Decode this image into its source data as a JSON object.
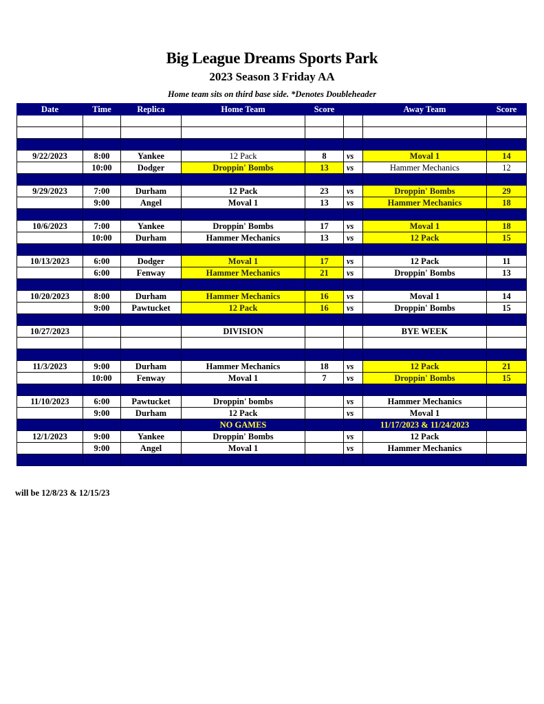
{
  "title": "Big League Dreams Sports Park",
  "subtitle": "2023 Season 3 Friday AA",
  "note": "Home team sits on third base side.  *Denotes Doubleheader",
  "colors": {
    "header": "#01017f",
    "winner_highlight": "#ffff00",
    "no_games_text": "#ffff33"
  },
  "headers": [
    "Date",
    "Time",
    "Replica",
    "Home Team",
    "Score",
    "",
    "Away Team",
    "Score"
  ],
  "rows": [
    {
      "type": "blank"
    },
    {
      "type": "blank"
    },
    {
      "type": "sep"
    },
    {
      "type": "game",
      "date": "9/22/2023",
      "time": "8:00",
      "replica": "Yankee",
      "home": "12 Pack",
      "home_score": "8",
      "vs": "vs",
      "away": "Moval 1",
      "away_score": "14",
      "winner": "away",
      "plain_home": true
    },
    {
      "type": "game",
      "date": "",
      "time": "10:00",
      "replica": "Dodger",
      "home": "Droppin' Bombs",
      "home_score": "13",
      "vs": "vs",
      "away": "Hammer Mechanics",
      "away_score": "12",
      "winner": "home",
      "plain_away": true
    },
    {
      "type": "sep"
    },
    {
      "type": "game",
      "date": "9/29/2023",
      "time": "7:00",
      "replica": "Durham",
      "home": "12 Pack",
      "home_score": "23",
      "vs": "vs",
      "away": "Droppin' Bombs",
      "away_score": "29",
      "winner": "away"
    },
    {
      "type": "game",
      "date": "",
      "time": "9:00",
      "replica": "Angel",
      "home": "Moval 1",
      "home_score": "13",
      "vs": "vs",
      "away": "Hammer Mechanics",
      "away_score": "18",
      "winner": "away"
    },
    {
      "type": "sep"
    },
    {
      "type": "game",
      "date": "10/6/2023",
      "time": "7:00",
      "replica": "Yankee",
      "home": "Droppin' Bombs",
      "home_score": "17",
      "vs": "vs",
      "away": "Moval 1",
      "away_score": "18",
      "winner": "away"
    },
    {
      "type": "game",
      "date": "",
      "time": "10:00",
      "replica": "Durham",
      "home": "Hammer Mechanics",
      "home_score": "13",
      "vs": "vs",
      "away": "12 Pack",
      "away_score": "15",
      "winner": "away"
    },
    {
      "type": "sep"
    },
    {
      "type": "game",
      "date": "10/13/2023",
      "time": "6:00",
      "replica": "Dodger",
      "home": "Moval 1",
      "home_score": "17",
      "vs": "vs",
      "away": "12 Pack",
      "away_score": "11",
      "winner": "home"
    },
    {
      "type": "game",
      "date": "",
      "time": "6:00",
      "replica": "Fenway",
      "home": "Hammer Mechanics",
      "home_score": "21",
      "vs": "vs",
      "away": "Droppin' Bombs",
      "away_score": "13",
      "winner": "home"
    },
    {
      "type": "sep"
    },
    {
      "type": "game",
      "date": "10/20/2023",
      "time": "8:00",
      "replica": "Durham",
      "home": "Hammer Mechanics",
      "home_score": "16",
      "vs": "vs",
      "away": "Moval 1",
      "away_score": "14",
      "winner": "home"
    },
    {
      "type": "game",
      "date": "",
      "time": "9:00",
      "replica": "Pawtucket",
      "home": "12 Pack",
      "home_score": "16",
      "vs": "vs",
      "away": "Droppin' Bombs",
      "away_score": "15",
      "winner": "home"
    },
    {
      "type": "sep"
    },
    {
      "type": "game",
      "date": "10/27/2023",
      "time": "",
      "replica": "",
      "home": "DIVISION",
      "home_score": "",
      "vs": "",
      "away": "BYE WEEK",
      "away_score": ""
    },
    {
      "type": "blank"
    },
    {
      "type": "sep"
    },
    {
      "type": "game",
      "date": "11/3/2023",
      "time": "9:00",
      "replica": "Durham",
      "home": "Hammer Mechanics",
      "home_score": "18",
      "vs": "vs",
      "away": "12 Pack",
      "away_score": "21",
      "winner": "away"
    },
    {
      "type": "game",
      "date": "",
      "time": "10:00",
      "replica": "Fenway",
      "home": "Moval 1",
      "home_score": "7",
      "vs": "vs",
      "away": "Droppin' Bombs",
      "away_score": "15",
      "winner": "away"
    },
    {
      "type": "sep"
    },
    {
      "type": "game",
      "date": "11/10/2023",
      "time": "6:00",
      "replica": "Pawtucket",
      "home": "Droppin' bombs",
      "home_score": "",
      "vs": "vs",
      "away": "Hammer Mechanics",
      "away_score": ""
    },
    {
      "type": "game",
      "date": "",
      "time": "9:00",
      "replica": "Durham",
      "home": "12 Pack",
      "home_score": "",
      "vs": "vs",
      "away": "Moval 1",
      "away_score": ""
    },
    {
      "type": "sep",
      "home": "NO GAMES",
      "away": "11/17/2023 & 11/24/2023"
    },
    {
      "type": "game",
      "date": "12/1/2023",
      "time": "9:00",
      "replica": "Yankee",
      "home": "Droppin' Bombs",
      "home_score": "",
      "vs": "vs",
      "away": "12 Pack",
      "away_score": ""
    },
    {
      "type": "game",
      "date": "",
      "time": "9:00",
      "replica": "Angel",
      "home": "Moval 1",
      "home_score": "",
      "vs": "vs",
      "away": "Hammer Mechanics",
      "away_score": ""
    },
    {
      "type": "sep"
    }
  ],
  "footer": "will be 12/8/23 & 12/15/23"
}
